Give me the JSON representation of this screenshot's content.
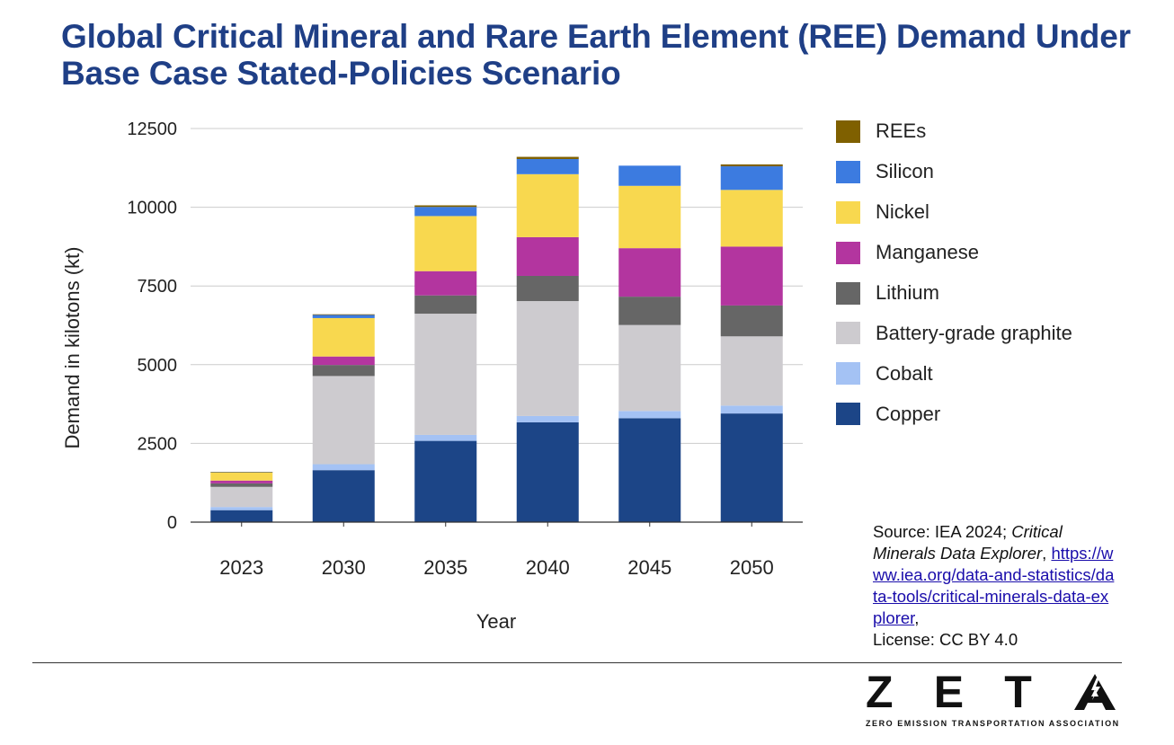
{
  "title": "Global Critical Mineral and Rare Earth Element (REE) Demand Under Base Case Stated-Policies Scenario",
  "chart_data": {
    "type": "bar",
    "stacked": true,
    "xlabel": "Year",
    "ylabel": "Demand in kilotons (kt)",
    "ylim": [
      0,
      12500
    ],
    "yticks": [
      0,
      2500,
      5000,
      7500,
      10000,
      12500
    ],
    "grid": true,
    "legend_position": "right",
    "categories": [
      "2023",
      "2030",
      "2035",
      "2040",
      "2045",
      "2050"
    ],
    "series": [
      {
        "name": "Copper",
        "color": "#1c4587",
        "values": [
          380,
          1650,
          2580,
          3170,
          3300,
          3450
        ]
      },
      {
        "name": "Cobalt",
        "color": "#a4c2f4",
        "values": [
          100,
          190,
          190,
          200,
          230,
          250
        ]
      },
      {
        "name": "Battery-grade graphite",
        "color": "#cdcbcf",
        "values": [
          640,
          2800,
          3850,
          3650,
          2730,
          2200
        ]
      },
      {
        "name": "Lithium",
        "color": "#666666",
        "values": [
          110,
          350,
          580,
          800,
          900,
          980
        ]
      },
      {
        "name": "Manganese",
        "color": "#b3359f",
        "values": [
          90,
          270,
          770,
          1230,
          1540,
          1870
        ]
      },
      {
        "name": "Nickel",
        "color": "#f8d84f",
        "values": [
          260,
          1220,
          1750,
          2000,
          1980,
          1800
        ]
      },
      {
        "name": "Silicon",
        "color": "#3c7be0",
        "values": [
          10,
          100,
          290,
          480,
          640,
          750
        ]
      },
      {
        "name": "REEs",
        "color": "#7f6000",
        "values": [
          2,
          20,
          50,
          70,
          0,
          60
        ]
      }
    ]
  },
  "source": {
    "prefix": "Source: IEA 2024; ",
    "italic": "Critical Minerals Data Explorer",
    "comma": ",",
    "link": "https://www.iea.org/data-and-statistics/data-tools/critical-minerals-data-explorer",
    "suffix": ",",
    "license": "License: CC BY 4.0"
  },
  "logo": {
    "letters": [
      "Z",
      "E",
      "T"
    ],
    "tagline": "ZERO EMISSION TRANSPORTATION ASSOCIATION",
    "mark_color": "#111111"
  }
}
